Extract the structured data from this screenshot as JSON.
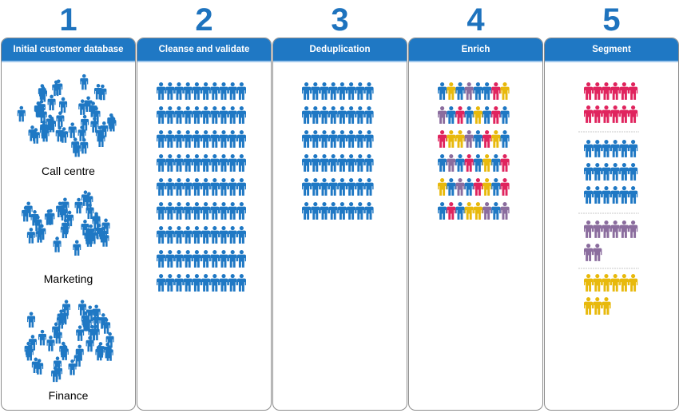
{
  "steps": [
    {
      "number": "1",
      "label": "Initial customer database"
    },
    {
      "number": "2",
      "label": "Cleanse and validate"
    },
    {
      "number": "3",
      "label": "Deduplication"
    },
    {
      "number": "4",
      "label": "Enrich"
    },
    {
      "number": "5",
      "label": "Segment"
    }
  ],
  "sources": [
    {
      "label": "Call centre"
    },
    {
      "label": "Marketing"
    },
    {
      "label": "Finance"
    }
  ],
  "colors": {
    "blue": "#1f78c4",
    "red": "#e0245e",
    "yellow": "#e8b90c",
    "purple": "#8b6d9e",
    "number": "#1e73be",
    "header_border": "#9ec7ec",
    "divider": "#c8c8c8"
  },
  "icons": {
    "person": "person-icon"
  }
}
